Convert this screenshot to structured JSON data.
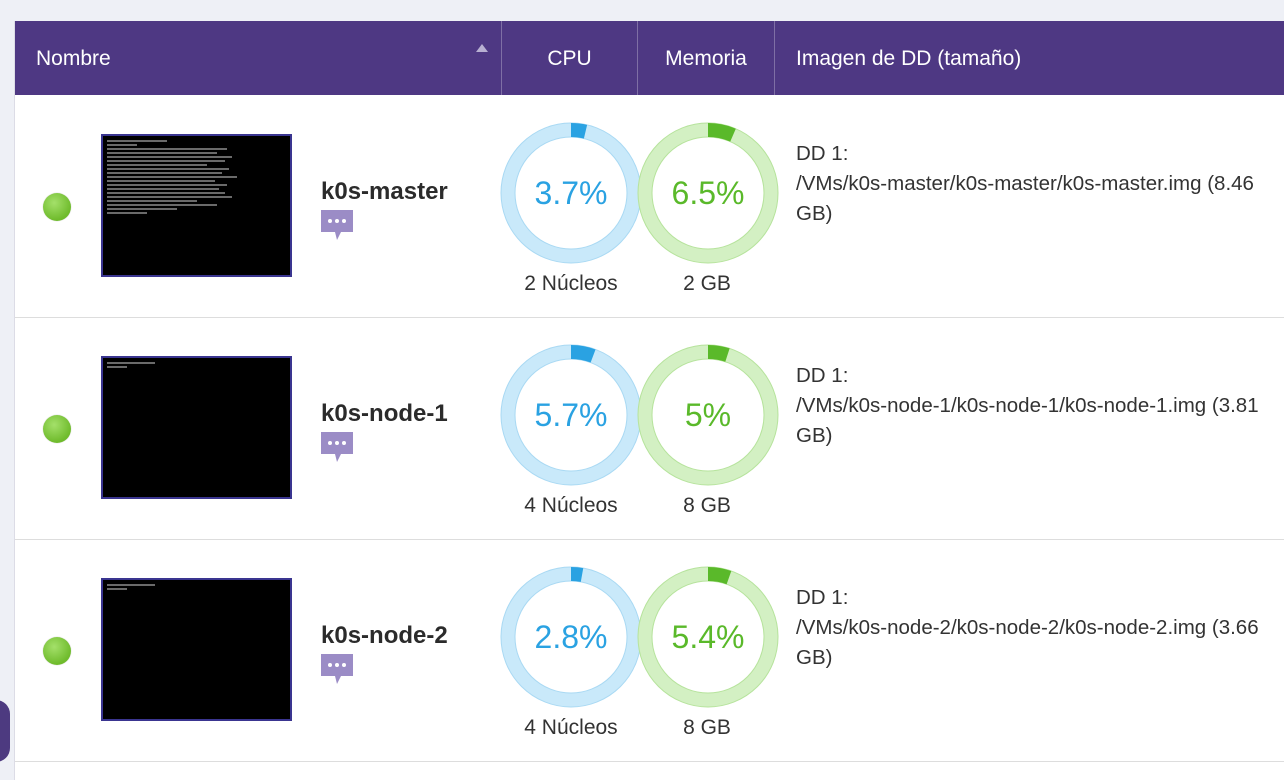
{
  "table": {
    "columns": {
      "name": "Nombre",
      "cpu": "CPU",
      "memory": "Memoria",
      "disk": "Imagen de DD (tamaño)"
    },
    "sort_icon": "sort-ascending-icon"
  },
  "vms": [
    {
      "name": "k0s-master",
      "status": "running",
      "status_color": "#7ac943",
      "cpu_usage": "3.7%",
      "cpu_fraction": 0.037,
      "cpu_cores": "2 Núcleos",
      "mem_usage": "6.5%",
      "mem_fraction": 0.065,
      "mem_total": "2 GB",
      "disk_label": "DD 1:",
      "disk_path": "/VMs/k0s-master/k0s-master/k0s-master.img (8.46GB)"
    },
    {
      "name": "k0s-node-1",
      "status": "running",
      "status_color": "#7ac943",
      "cpu_usage": "5.7%",
      "cpu_fraction": 0.057,
      "cpu_cores": "4 Núcleos",
      "mem_usage": "5%",
      "mem_fraction": 0.05,
      "mem_total": "8 GB",
      "disk_label": "DD 1:",
      "disk_path": "/VMs/k0s-node-1/k0s-node-1/k0s-node-1.img (3.81GB)"
    },
    {
      "name": "k0s-node-2",
      "status": "running",
      "status_color": "#7ac943",
      "cpu_usage": "2.8%",
      "cpu_fraction": 0.028,
      "cpu_cores": "4 Núcleos",
      "mem_usage": "5.4%",
      "mem_fraction": 0.054,
      "mem_total": "8 GB",
      "disk_label": "DD 1:",
      "disk_path": "/VMs/k0s-node-2/k0s-node-2/k0s-node-2.img (3.66GB)"
    }
  ],
  "colors": {
    "header": "#4e3883",
    "cpu_accent": "#2aa2e2",
    "cpu_track": "#c9e9fa",
    "mem_accent": "#5ab92a",
    "mem_track": "#d3f0c3",
    "note_icon": "#9b8cc6"
  }
}
